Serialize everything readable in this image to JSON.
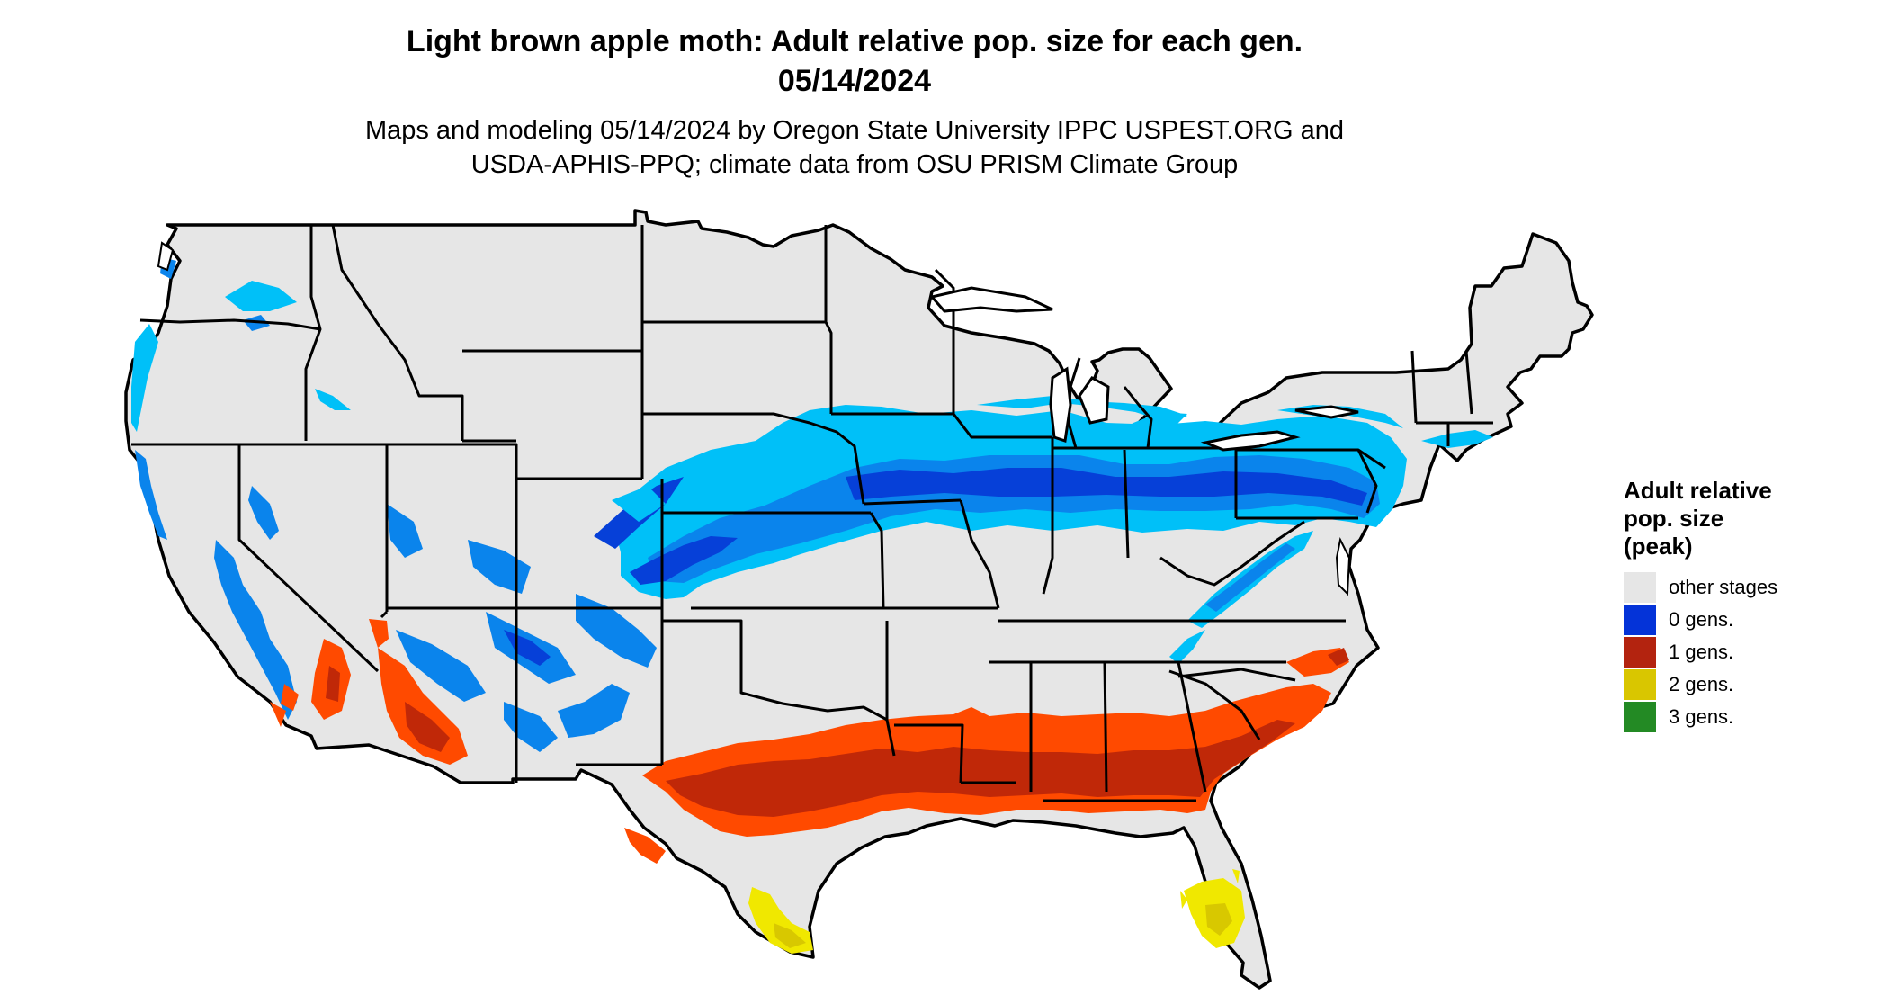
{
  "header": {
    "title_line1": "Light brown apple moth: Adult relative pop. size for each gen.",
    "title_line2": "05/14/2024",
    "subtitle_line1": "Maps and modeling 05/14/2024 by Oregon State University IPPC USPEST.ORG and",
    "subtitle_line2": "USDA-APHIS-PPQ; climate data from OSU PRISM Climate Group"
  },
  "map": {
    "region": "Contiguous United States",
    "colors": {
      "land": "#e6e6e6",
      "border": "#000000",
      "gen0_light": "#00c0f8",
      "gen0_mid": "#0a84ec",
      "gen0_dark": "#0640d8",
      "gen1_light": "#ff4a00",
      "gen1_dark": "#c02808",
      "gen2": "#f0e800",
      "gen2_dark": "#d8c800"
    }
  },
  "legend": {
    "title_line1": "Adult relative",
    "title_line2": "pop. size",
    "title_line3": "(peak)",
    "items": [
      {
        "label": "other stages",
        "color": "#e6e6e6"
      },
      {
        "label": "0 gens.",
        "color": "#0433d8"
      },
      {
        "label": "1 gens.",
        "color": "#b3230f"
      },
      {
        "label": "2 gens.",
        "color": "#d9c600"
      },
      {
        "label": "3 gens.",
        "color": "#238a24"
      }
    ]
  }
}
